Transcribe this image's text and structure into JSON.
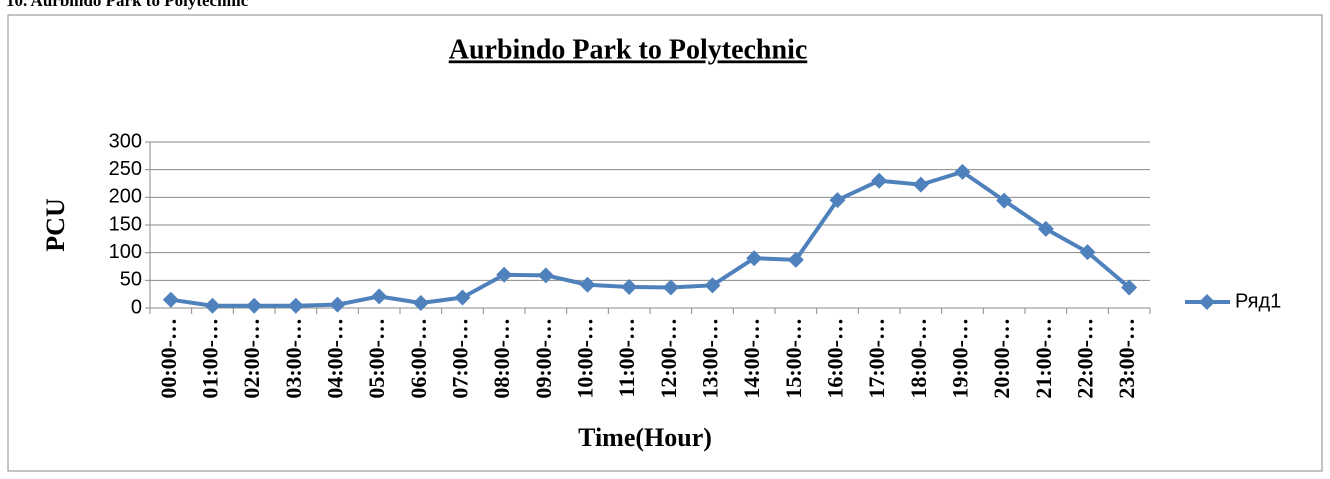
{
  "heading": "10. Aurbindo Park to Polytechnic",
  "chart_data": {
    "type": "line",
    "title": "Aurbindo Park  to Polytechnic",
    "x_label": "Time(Hour)",
    "y_label": "PCU",
    "categories": [
      "00:00-…",
      "01:00-…",
      "02:00-…",
      "03:00-…",
      "04:00-…",
      "05:00-…",
      "06:00-…",
      "07:00-…",
      "08:00-…",
      "09:00-…",
      "10:00-…",
      "11:00-…",
      "12:00-…",
      "13:00-…",
      "14:00-…",
      "15:00-…",
      "16:00-…",
      "17:00-…",
      "18:00-…",
      "19:00-…",
      "20:00-…",
      "21:00-…",
      "22:00-…",
      "23:00-…"
    ],
    "series": [
      {
        "name": "Ряд1",
        "color": "#4f81bd",
        "values": [
          15,
          4,
          4,
          4,
          6,
          21,
          9,
          19,
          60,
          59,
          42,
          38,
          37,
          41,
          90,
          87,
          195,
          230,
          223,
          246,
          194,
          143,
          101,
          37
        ]
      }
    ],
    "ylim": [
      0,
      300
    ],
    "yticks": [
      0,
      50,
      100,
      150,
      200,
      250,
      300
    ],
    "grid": true,
    "legend": "right"
  }
}
